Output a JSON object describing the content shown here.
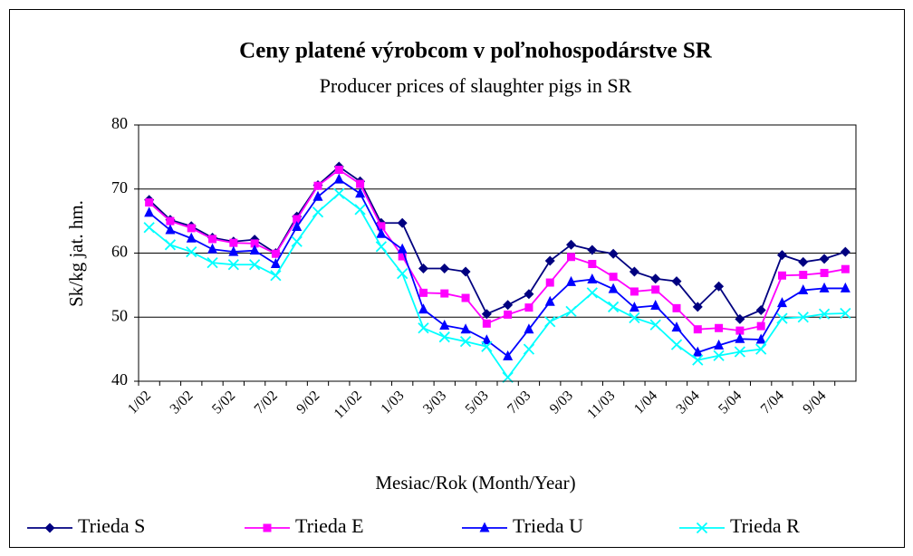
{
  "chart_data": {
    "type": "line",
    "title": "Ceny platené výrobcom v poľnohospodárstve SR",
    "subtitle": "Producer prices of slaughter pigs in SR",
    "x_label": "Mesiac/Rok (Month/Year)",
    "y_label": "Sk/kg jat. hm.",
    "categories": [
      "1/02",
      null,
      "3/02",
      null,
      "5/02",
      null,
      "7/02",
      null,
      "9/02",
      null,
      "11/02",
      null,
      "1/03",
      null,
      "3/03",
      null,
      "5/03",
      null,
      "7/03",
      null,
      "9/03",
      null,
      "11/03",
      null,
      "1/04",
      null,
      "3/04",
      null,
      "5/04",
      null,
      "7/04",
      null,
      "9/04",
      null
    ],
    "series": [
      {
        "name": "Trieda S",
        "color": "#000080",
        "marker": "diamond",
        "values": [
          68.3,
          65.2,
          64.2,
          62.4,
          61.8,
          62.1,
          60.0,
          65.7,
          70.6,
          73.5,
          71.2,
          64.7,
          64.7,
          57.6,
          57.6,
          57.1,
          50.5,
          51.9,
          53.6,
          58.8,
          61.3,
          60.5,
          59.9,
          57.1,
          56.0,
          55.6,
          51.6,
          54.8,
          49.7,
          51.1,
          59.7,
          58.6,
          59.1,
          60.2
        ]
      },
      {
        "name": "Trieda E",
        "color": "#ff00ff",
        "marker": "square",
        "values": [
          67.9,
          65.0,
          63.9,
          62.2,
          61.6,
          61.5,
          59.9,
          65.3,
          70.5,
          73.0,
          70.8,
          64.2,
          59.5,
          53.8,
          53.7,
          53.0,
          49.0,
          50.4,
          51.5,
          55.4,
          59.4,
          58.3,
          56.3,
          54.0,
          54.3,
          51.4,
          48.1,
          48.3,
          47.9,
          48.6,
          56.5,
          56.6,
          56.9,
          57.5
        ]
      },
      {
        "name": "Trieda U",
        "color": "#0000ff",
        "marker": "triangle",
        "values": [
          66.3,
          63.6,
          62.3,
          60.6,
          60.2,
          60.4,
          58.3,
          64.1,
          68.8,
          71.5,
          69.3,
          63.0,
          60.6,
          51.2,
          48.7,
          48.1,
          46.4,
          43.9,
          48.1,
          52.4,
          55.5,
          55.9,
          54.4,
          51.5,
          51.8,
          48.4,
          44.5,
          45.6,
          46.6,
          46.5,
          52.2,
          54.2,
          54.5,
          54.5
        ]
      },
      {
        "name": "Trieda R",
        "color": "#00ffff",
        "marker": "x",
        "values": [
          64.0,
          61.3,
          60.2,
          58.5,
          58.2,
          58.2,
          56.5,
          61.8,
          66.4,
          69.3,
          66.8,
          61.0,
          56.8,
          48.3,
          46.9,
          46.2,
          45.4,
          40.6,
          45.0,
          49.3,
          50.9,
          53.8,
          51.6,
          49.9,
          48.8,
          45.7,
          43.3,
          44.0,
          44.6,
          45.0,
          49.8,
          50.0,
          50.5,
          50.6
        ]
      }
    ],
    "ylim": [
      40,
      80
    ],
    "yticks": [
      40,
      50,
      60,
      70,
      80
    ],
    "grid": true,
    "legend": "bottom"
  }
}
